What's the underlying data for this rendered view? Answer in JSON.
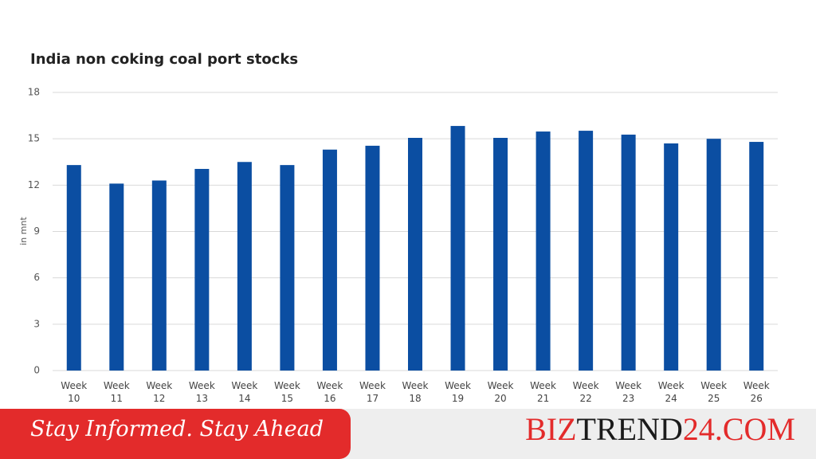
{
  "chart_data": {
    "type": "bar",
    "title": "India non coking coal port stocks",
    "y_label": "in mnt",
    "categories": [
      "Week 10",
      "Week 11",
      "Week 12",
      "Week 13",
      "Week 14",
      "Week 15",
      "Week 16",
      "Week 17",
      "Week 18",
      "Week 19",
      "Week 20",
      "Week 21",
      "Week 22",
      "Week 23",
      "Week 24",
      "Week 25",
      "Week 26"
    ],
    "values": [
      13.3,
      12.1,
      12.3,
      13.05,
      13.5,
      13.3,
      14.3,
      14.55,
      15.06,
      15.83,
      15.06,
      15.47,
      15.52,
      15.27,
      14.7,
      15.0,
      14.8
    ],
    "color": "#0b4ea2",
    "ylim": [
      0,
      18
    ],
    "yticks": [
      0,
      3,
      6,
      9,
      12,
      15,
      18
    ],
    "grid": true
  },
  "banner": {
    "tagline": "Stay Informed. Stay Ahead",
    "brand": [
      "BIZ",
      "TREND",
      "24.COM"
    ]
  }
}
